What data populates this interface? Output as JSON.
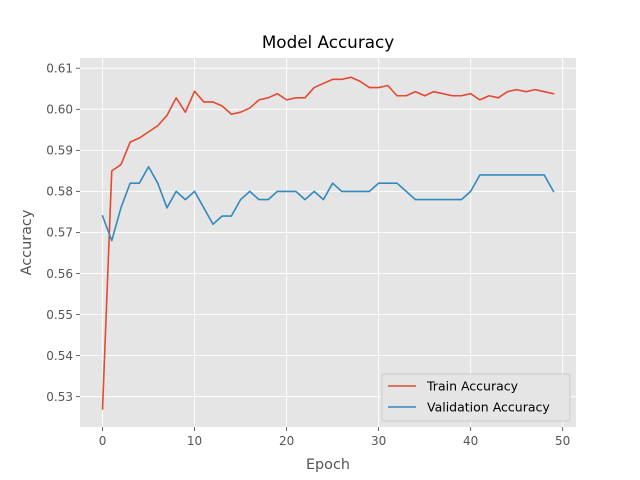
{
  "chart_data": {
    "type": "line",
    "title": "Model Accuracy",
    "xlabel": "Epoch",
    "ylabel": "Accuracy",
    "xlim": [
      -2.45,
      51.45
    ],
    "ylim": [
      0.5226,
      0.6125
    ],
    "xticks": [
      0,
      10,
      20,
      30,
      40,
      50
    ],
    "yticks": [
      0.53,
      0.54,
      0.55,
      0.56,
      0.57,
      0.58,
      0.59,
      0.6,
      0.61
    ],
    "grid": true,
    "legend_position": "lower-right",
    "x": [
      0,
      1,
      2,
      3,
      4,
      5,
      6,
      7,
      8,
      9,
      10,
      11,
      12,
      13,
      14,
      15,
      16,
      17,
      18,
      19,
      20,
      21,
      22,
      23,
      24,
      25,
      26,
      27,
      28,
      29,
      30,
      31,
      32,
      33,
      34,
      35,
      36,
      37,
      38,
      39,
      40,
      41,
      42,
      43,
      44,
      45,
      46,
      47,
      48,
      49
    ],
    "series": [
      {
        "name": "Train Accuracy",
        "color": "#E24A33",
        "values": [
          0.527,
          0.585,
          0.5865,
          0.592,
          0.593,
          0.5945,
          0.596,
          0.5985,
          0.6028,
          0.5993,
          0.6044,
          0.6018,
          0.6018,
          0.6008,
          0.5988,
          0.5993,
          0.6003,
          0.6023,
          0.6028,
          0.6038,
          0.6023,
          0.6028,
          0.6028,
          0.6053,
          0.6063,
          0.6073,
          0.6073,
          0.6078,
          0.6068,
          0.6053,
          0.6053,
          0.6058,
          0.6033,
          0.6033,
          0.6043,
          0.6033,
          0.6043,
          0.6038,
          0.6033,
          0.6033,
          0.6038,
          0.6023,
          0.6033,
          0.6028,
          0.6043,
          0.6048,
          0.6043,
          0.6048,
          0.6043,
          0.6038
        ]
      },
      {
        "name": "Validation Accuracy",
        "color": "#348ABD",
        "values": [
          0.574,
          0.568,
          0.576,
          0.582,
          0.582,
          0.586,
          0.582,
          0.576,
          0.58,
          0.578,
          0.58,
          0.576,
          0.572,
          0.574,
          0.574,
          0.578,
          0.58,
          0.578,
          0.578,
          0.58,
          0.58,
          0.58,
          0.578,
          0.58,
          0.578,
          0.582,
          0.58,
          0.58,
          0.58,
          0.58,
          0.582,
          0.582,
          0.582,
          0.58,
          0.578,
          0.578,
          0.578,
          0.578,
          0.578,
          0.578,
          0.58,
          0.584,
          0.584,
          0.584,
          0.584,
          0.584,
          0.584,
          0.584,
          0.584,
          0.58
        ]
      }
    ]
  }
}
